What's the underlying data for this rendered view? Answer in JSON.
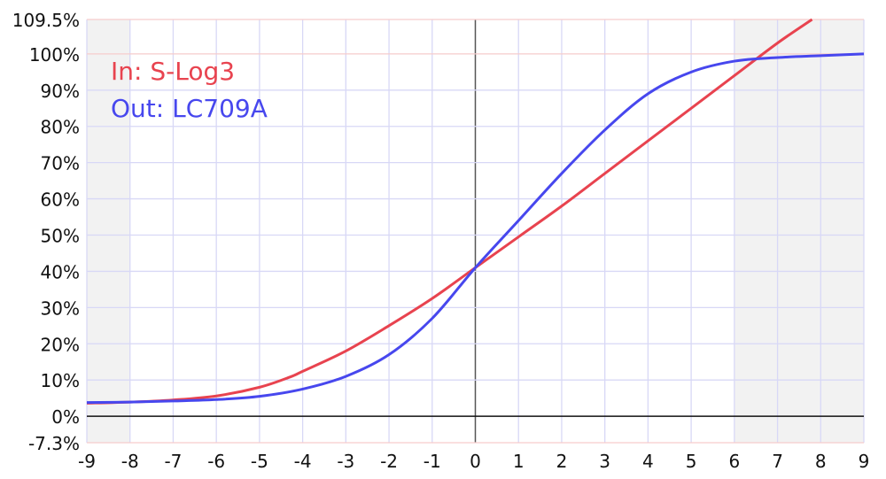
{
  "chart_data": {
    "type": "line",
    "title": "",
    "xlabel": "",
    "ylabel": "",
    "xlim": [
      -9,
      9
    ],
    "ylim": [
      -7.3,
      109.5
    ],
    "grid": true,
    "x_ticks": [
      "-9",
      "-8",
      "-7",
      "-6",
      "-5",
      "-4",
      "-3",
      "-2",
      "-1",
      "0",
      "1",
      "2",
      "3",
      "4",
      "5",
      "6",
      "7",
      "8",
      "9"
    ],
    "y_ticks": [
      {
        "value": 109.5,
        "label": "109.5%"
      },
      {
        "value": 100,
        "label": "100%"
      },
      {
        "value": 90,
        "label": "90%"
      },
      {
        "value": 80,
        "label": "80%"
      },
      {
        "value": 70,
        "label": "70%"
      },
      {
        "value": 60,
        "label": "60%"
      },
      {
        "value": 50,
        "label": "50%"
      },
      {
        "value": 40,
        "label": "40%"
      },
      {
        "value": 30,
        "label": "30%"
      },
      {
        "value": 20,
        "label": "20%"
      },
      {
        "value": 10,
        "label": "10%"
      },
      {
        "value": 0,
        "label": "0%"
      },
      {
        "value": -7.3,
        "label": "-7.3%"
      }
    ],
    "shaded_ranges": [
      [
        -9,
        -8
      ],
      [
        6,
        9
      ]
    ],
    "legend_position": "top-left",
    "series": [
      {
        "name": "In: S-Log3",
        "color": "#e8434f",
        "x": [
          -9,
          -8,
          -7,
          -6,
          -5,
          -4.3,
          -4,
          -3,
          -2,
          -1,
          0,
          1,
          2,
          3,
          4,
          5,
          6,
          7,
          7.8
        ],
        "y": [
          3.6,
          3.9,
          4.5,
          5.6,
          8,
          10.8,
          12.4,
          18,
          25,
          32.5,
          41,
          49.5,
          58,
          67,
          76,
          85,
          94,
          103,
          109.5
        ]
      },
      {
        "name": "Out: LC709A",
        "color": "#4747ee",
        "x": [
          -9,
          -8,
          -7,
          -6,
          -5,
          -4,
          -3,
          -2,
          -1,
          0,
          1,
          2,
          3,
          4,
          5,
          6,
          7,
          8,
          9
        ],
        "y": [
          3.8,
          3.9,
          4.2,
          4.6,
          5.5,
          7.5,
          11,
          17,
          27,
          41,
          54,
          67,
          79,
          89,
          95,
          98,
          99,
          99.5,
          100
        ]
      }
    ]
  }
}
